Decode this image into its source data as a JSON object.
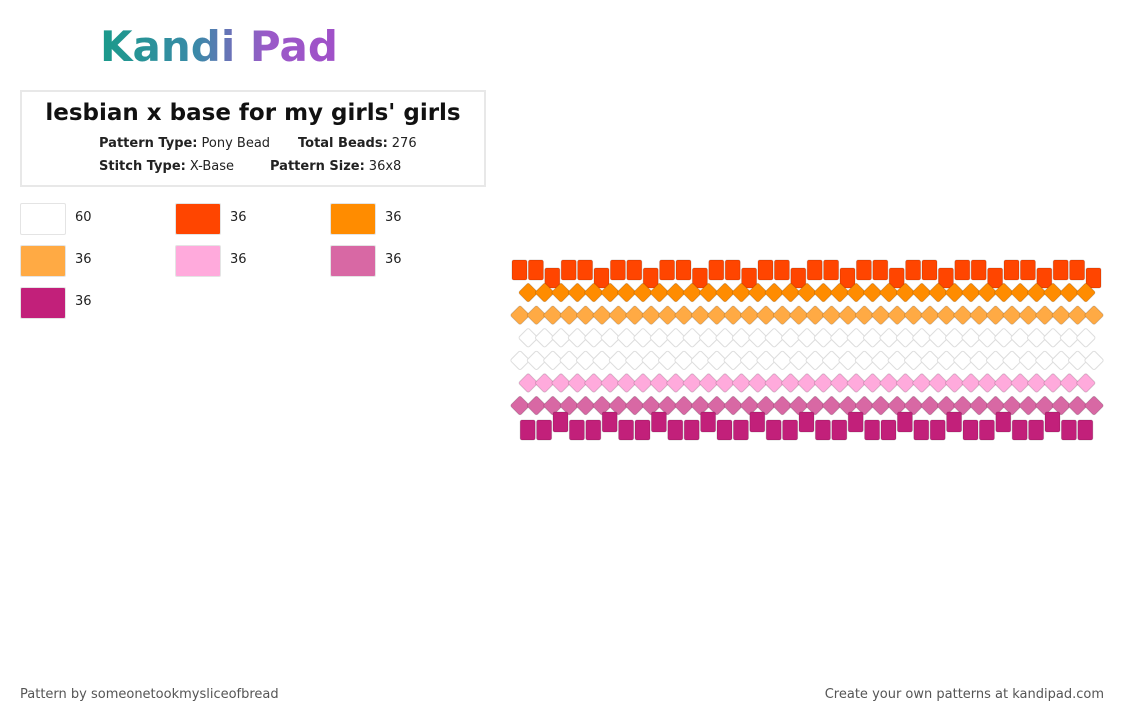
{
  "header": {
    "logo": "Kandi Pad"
  },
  "pattern": {
    "title": "lesbian x base for my girls' girls",
    "info": [
      {
        "label": "Pattern Type:",
        "value": "Pony Bead"
      },
      {
        "label": "Total Beads:",
        "value": "276"
      },
      {
        "label": "Stitch Type:",
        "value": "X-Base"
      },
      {
        "label": "Pattern Size:",
        "value": "36x8"
      }
    ]
  },
  "legend": [
    {
      "color": "#ffffff",
      "count": 60
    },
    {
      "color": "#ff4500",
      "count": 36
    },
    {
      "color": "#ff8c00",
      "count": 36
    },
    {
      "color": "#ffaa44",
      "count": 36
    },
    {
      "color": "#ffaadc",
      "count": 36
    },
    {
      "color": "#d868a4",
      "count": 36
    },
    {
      "color": "#c2207a",
      "count": 36
    }
  ],
  "footer": {
    "left": "Pattern by someonetookmysliceofbread",
    "right": "Create your own patterns at kandipad.com"
  }
}
